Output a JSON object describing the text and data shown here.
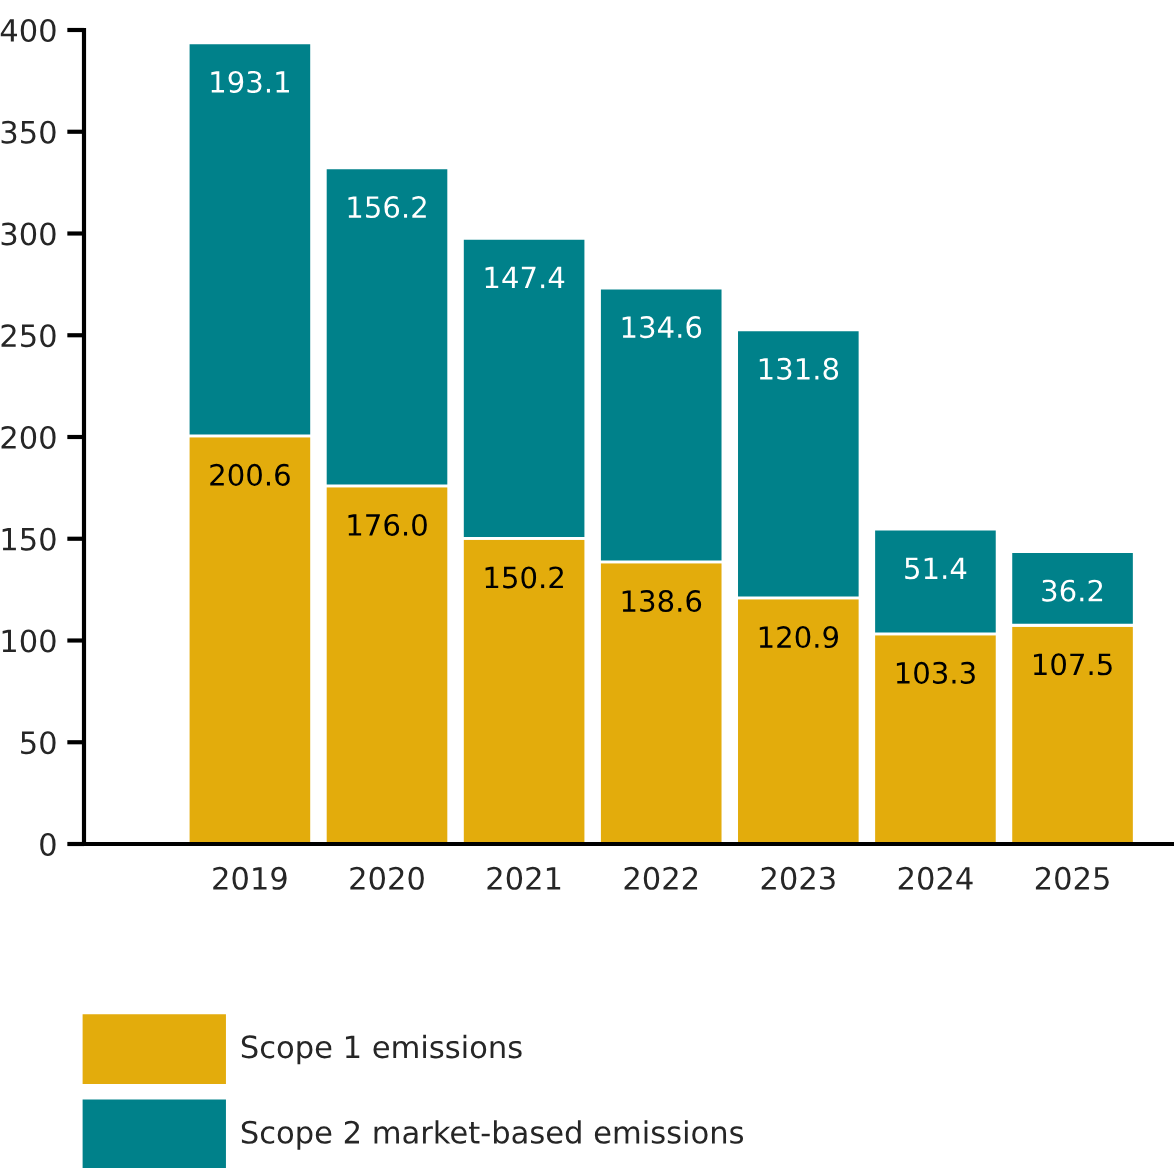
{
  "chart_data": {
    "type": "bar",
    "stacked": true,
    "categories": [
      "2019",
      "2020",
      "2021",
      "2022",
      "2023",
      "2024",
      "2025"
    ],
    "series": [
      {
        "name": "Scope 1 emissions",
        "color": "#e3ac0c",
        "values": [
          200.6,
          176.0,
          150.2,
          138.6,
          120.9,
          103.3,
          107.5
        ],
        "value_labels": [
          "200.6",
          "176.0",
          "150.2",
          "138.6",
          "120.9",
          "103.3",
          "107.5"
        ]
      },
      {
        "name": "Scope 2 market-based emissions",
        "color": "#00818a",
        "values": [
          193.1,
          156.2,
          147.4,
          134.6,
          131.8,
          51.4,
          36.2
        ],
        "value_labels": [
          "193.1",
          "156.2",
          "147.4",
          "134.6",
          "131.8",
          "51.4",
          "36.2"
        ]
      }
    ],
    "ylim": [
      0,
      400
    ],
    "yticks": [
      0,
      50,
      100,
      150,
      200,
      250,
      300,
      350,
      400
    ],
    "grid": false,
    "legend": "bottom"
  }
}
